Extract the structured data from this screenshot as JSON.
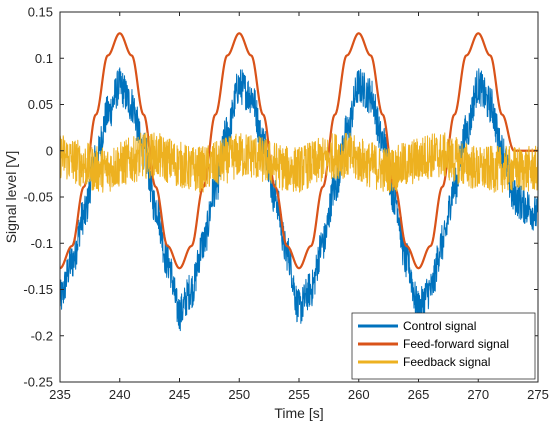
{
  "chart_data": {
    "type": "line",
    "xlabel": "Time [s]",
    "ylabel": "Signal level [V]",
    "xlim": [
      235,
      275
    ],
    "ylim": [
      -0.25,
      0.15
    ],
    "xticks": [
      235,
      240,
      245,
      250,
      255,
      260,
      265,
      270,
      275
    ],
    "yticks": [
      -0.25,
      -0.2,
      -0.15,
      -0.1,
      -0.05,
      0,
      0.05,
      0.1,
      0.15
    ],
    "xtick_labels": [
      "235",
      "240",
      "245",
      "250",
      "255",
      "260",
      "265",
      "270",
      "275"
    ],
    "ytick_labels": [
      "-0.25",
      "-0.2",
      "-0.15",
      "-0.1",
      "-0.05",
      "0",
      "0.05",
      "0.1",
      "0.15"
    ],
    "grid": false,
    "legend_position": "bottom-right",
    "series": [
      {
        "name": "Control signal",
        "color": "#0072BD",
        "x": [
          235,
          236,
          237,
          238,
          239,
          240,
          241,
          242,
          243,
          244,
          245,
          246,
          247,
          248,
          249,
          250,
          251,
          252,
          253,
          254,
          255,
          256,
          257,
          258,
          259,
          260,
          261,
          262,
          263,
          264,
          265,
          266,
          267,
          268,
          269,
          270,
          271,
          272,
          273,
          274,
          275
        ],
        "values": [
          -0.16,
          -0.12,
          -0.07,
          -0.01,
          0.04,
          0.07,
          0.05,
          0.0,
          -0.06,
          -0.12,
          -0.175,
          -0.15,
          -0.1,
          -0.04,
          0.02,
          0.07,
          0.06,
          0.01,
          -0.05,
          -0.11,
          -0.17,
          -0.15,
          -0.1,
          -0.04,
          0.02,
          0.07,
          0.06,
          0.01,
          -0.05,
          -0.12,
          -0.17,
          -0.15,
          -0.1,
          -0.04,
          0.02,
          0.07,
          0.05,
          0.0,
          -0.05,
          -0.06,
          -0.07
        ],
        "noise_amplitude": 0.02
      },
      {
        "name": "Feed-forward signal",
        "color": "#D95319",
        "x": [
          235,
          236,
          237,
          238,
          239,
          240,
          241,
          242,
          243,
          244,
          245,
          246,
          247,
          248,
          249,
          250,
          251,
          252,
          253,
          254,
          255,
          256,
          257,
          258,
          259,
          260,
          261,
          262,
          263,
          264,
          265,
          266,
          267,
          268,
          269,
          270,
          271,
          272,
          273,
          274,
          275
        ],
        "values": [
          -0.127,
          -0.103,
          -0.039,
          0.039,
          0.103,
          0.127,
          0.103,
          0.039,
          -0.039,
          -0.103,
          -0.127,
          -0.103,
          -0.039,
          0.039,
          0.103,
          0.127,
          0.103,
          0.039,
          -0.039,
          -0.103,
          -0.127,
          -0.103,
          -0.039,
          0.039,
          0.103,
          0.127,
          0.103,
          0.039,
          -0.039,
          -0.103,
          -0.127,
          -0.103,
          -0.039,
          0.039,
          0.103,
          0.127,
          0.103,
          0.039,
          0.0,
          0.0,
          0.0
        ]
      },
      {
        "name": "Feedback signal",
        "color": "#EDB120",
        "x": [
          235,
          236,
          237,
          238,
          239,
          240,
          241,
          242,
          243,
          244,
          245,
          246,
          247,
          248,
          249,
          250,
          251,
          252,
          253,
          254,
          255,
          256,
          257,
          258,
          259,
          260,
          261,
          262,
          263,
          264,
          265,
          266,
          267,
          268,
          269,
          270,
          271,
          272,
          273,
          274,
          275
        ],
        "values": [
          -0.005,
          -0.01,
          -0.015,
          -0.02,
          -0.02,
          -0.015,
          -0.01,
          -0.005,
          -0.005,
          -0.01,
          -0.015,
          -0.02,
          -0.02,
          -0.015,
          -0.01,
          -0.005,
          -0.005,
          -0.01,
          -0.015,
          -0.02,
          -0.02,
          -0.015,
          -0.01,
          -0.005,
          -0.005,
          -0.01,
          -0.015,
          -0.02,
          -0.02,
          -0.015,
          -0.01,
          -0.005,
          -0.005,
          -0.01,
          -0.015,
          -0.02,
          -0.02,
          -0.02,
          -0.02,
          -0.02,
          -0.02
        ],
        "noise_amplitude": 0.025
      }
    ]
  }
}
